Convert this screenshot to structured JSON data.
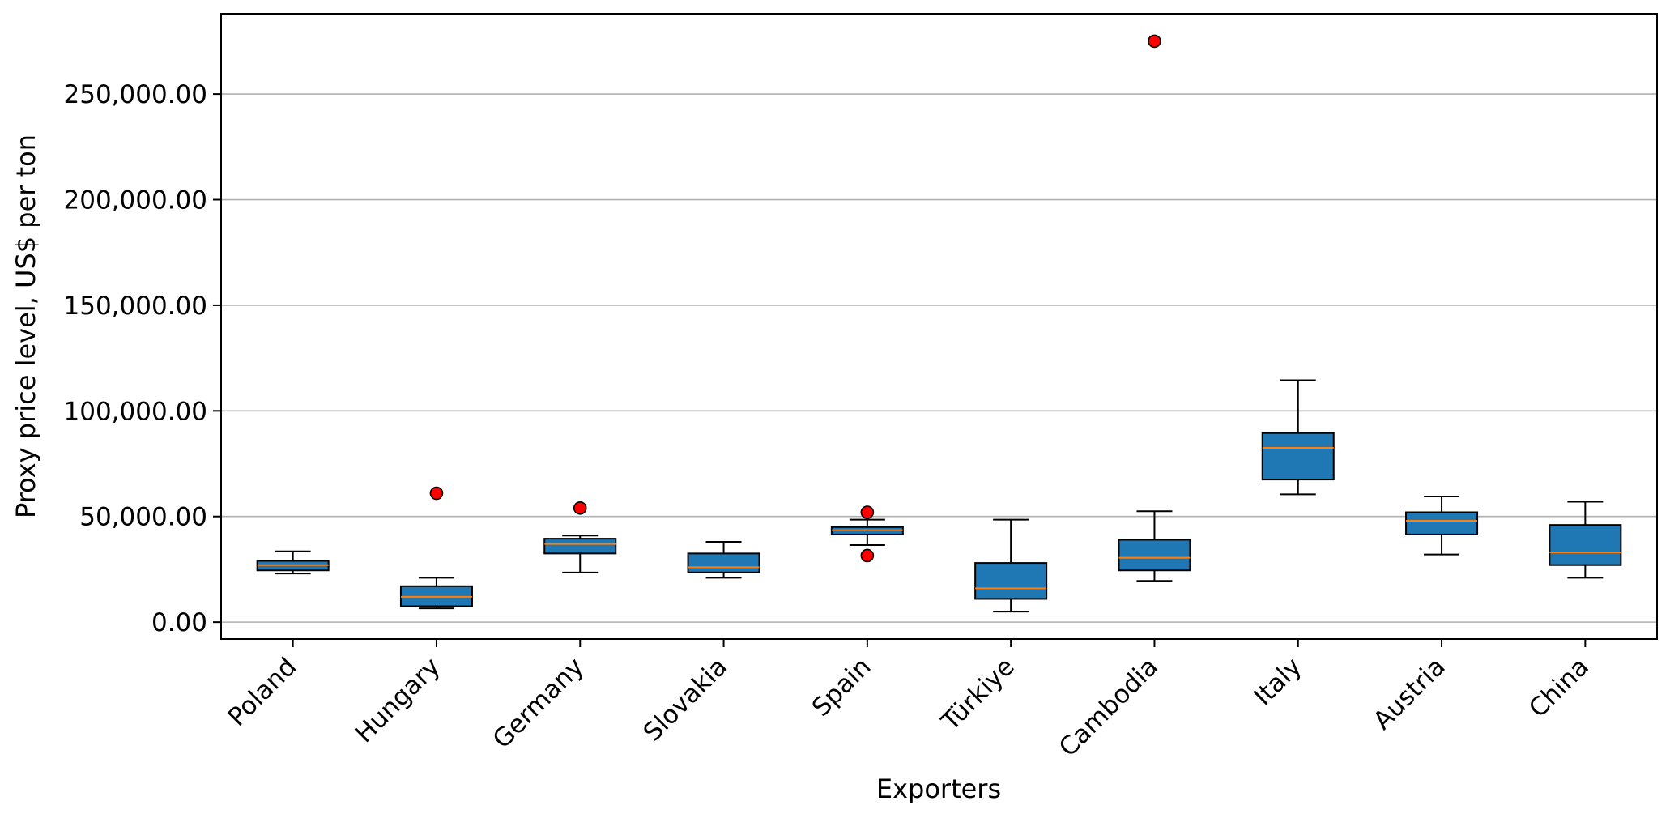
{
  "chart_data": {
    "type": "boxplot",
    "title": "",
    "xlabel": "Exporters",
    "ylabel": "Proxy price level, US$ per ton",
    "ylim": [
      -8000,
      288000
    ],
    "yticks": [
      0,
      50000,
      100000,
      150000,
      200000,
      250000
    ],
    "ytick_labels": [
      "0.00",
      "50,000.00",
      "100,000.00",
      "150,000.00",
      "200,000.00",
      "250,000.00"
    ],
    "grid": "horizontal",
    "box_color": "#1f77b4",
    "median_color": "#ff7f0e",
    "outlier_color": "#ff0000",
    "categories": [
      "Poland",
      "Hungary",
      "Germany",
      "Slovakia",
      "Spain",
      "Türkiye",
      "Cambodia",
      "Italy",
      "Austria",
      "China"
    ],
    "boxes": [
      {
        "whisker_low": 23000,
        "q1": 24500,
        "median": 27000,
        "q3": 29000,
        "whisker_high": 33500,
        "outliers": []
      },
      {
        "whisker_low": 6500,
        "q1": 7500,
        "median": 12000,
        "q3": 17000,
        "whisker_high": 21000,
        "outliers": [
          61000
        ]
      },
      {
        "whisker_low": 23500,
        "q1": 32500,
        "median": 37000,
        "q3": 39500,
        "whisker_high": 41000,
        "outliers": [
          54000
        ]
      },
      {
        "whisker_low": 21000,
        "q1": 23500,
        "median": 26000,
        "q3": 32500,
        "whisker_high": 38000,
        "outliers": []
      },
      {
        "whisker_low": 36500,
        "q1": 41500,
        "median": 43500,
        "q3": 45000,
        "whisker_high": 48500,
        "outliers": [
          31500,
          52000
        ]
      },
      {
        "whisker_low": 5000,
        "q1": 11000,
        "median": 16000,
        "q3": 28000,
        "whisker_high": 48500,
        "outliers": []
      },
      {
        "whisker_low": 19500,
        "q1": 24500,
        "median": 30500,
        "q3": 39000,
        "whisker_high": 52500,
        "outliers": [
          275000
        ]
      },
      {
        "whisker_low": 60500,
        "q1": 67500,
        "median": 82500,
        "q3": 89500,
        "whisker_high": 114500,
        "outliers": []
      },
      {
        "whisker_low": 32000,
        "q1": 41500,
        "median": 48000,
        "q3": 52000,
        "whisker_high": 59500,
        "outliers": []
      },
      {
        "whisker_low": 21000,
        "q1": 27000,
        "median": 33000,
        "q3": 46000,
        "whisker_high": 57000,
        "outliers": []
      }
    ]
  }
}
